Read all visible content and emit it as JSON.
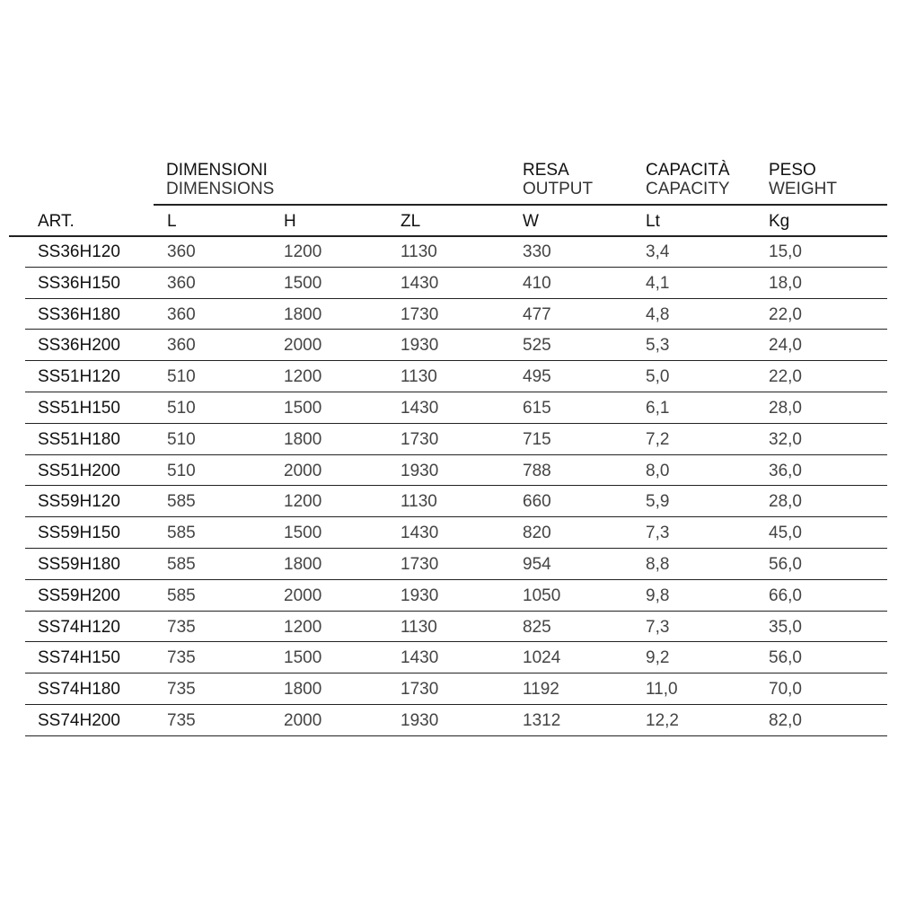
{
  "headers": {
    "groups": [
      {
        "it": "DIMENSIONI",
        "en": "DIMENSIONS"
      },
      {
        "it": "RESA",
        "en": "OUTPUT"
      },
      {
        "it": "CAPACITÀ",
        "en": "CAPACITY"
      },
      {
        "it": "PESO",
        "en": "WEIGHT"
      }
    ],
    "units": [
      "ART.",
      "L",
      "H",
      "ZL",
      "W",
      "Lt",
      "Kg"
    ]
  },
  "rows": [
    [
      "SS36H120",
      "360",
      "1200",
      "1130",
      "330",
      "3,4",
      "15,0"
    ],
    [
      "SS36H150",
      "360",
      "1500",
      "1430",
      "410",
      "4,1",
      "18,0"
    ],
    [
      "SS36H180",
      "360",
      "1800",
      "1730",
      "477",
      "4,8",
      "22,0"
    ],
    [
      "SS36H200",
      "360",
      "2000",
      "1930",
      "525",
      "5,3",
      "24,0"
    ],
    [
      "SS51H120",
      "510",
      "1200",
      "1130",
      "495",
      "5,0",
      "22,0"
    ],
    [
      "SS51H150",
      "510",
      "1500",
      "1430",
      "615",
      "6,1",
      "28,0"
    ],
    [
      "SS51H180",
      "510",
      "1800",
      "1730",
      "715",
      "7,2",
      "32,0"
    ],
    [
      "SS51H200",
      "510",
      "2000",
      "1930",
      "788",
      "8,0",
      "36,0"
    ],
    [
      "SS59H120",
      "585",
      "1200",
      "1130",
      "660",
      "5,9",
      "28,0"
    ],
    [
      "SS59H150",
      "585",
      "1500",
      "1430",
      "820",
      "7,3",
      "45,0"
    ],
    [
      "SS59H180",
      "585",
      "1800",
      "1730",
      "954",
      "8,8",
      "56,0"
    ],
    [
      "SS59H200",
      "585",
      "2000",
      "1930",
      "1050",
      "9,8",
      "66,0"
    ],
    [
      "SS74H120",
      "735",
      "1200",
      "1130",
      "825",
      "7,3",
      "35,0"
    ],
    [
      "SS74H150",
      "735",
      "1500",
      "1430",
      "1024",
      "9,2",
      "56,0"
    ],
    [
      "SS74H180",
      "735",
      "1800",
      "1730",
      "1192",
      "11,0",
      "70,0"
    ],
    [
      "SS74H200",
      "735",
      "2000",
      "1930",
      "1312",
      "12,2",
      "82,0"
    ]
  ]
}
